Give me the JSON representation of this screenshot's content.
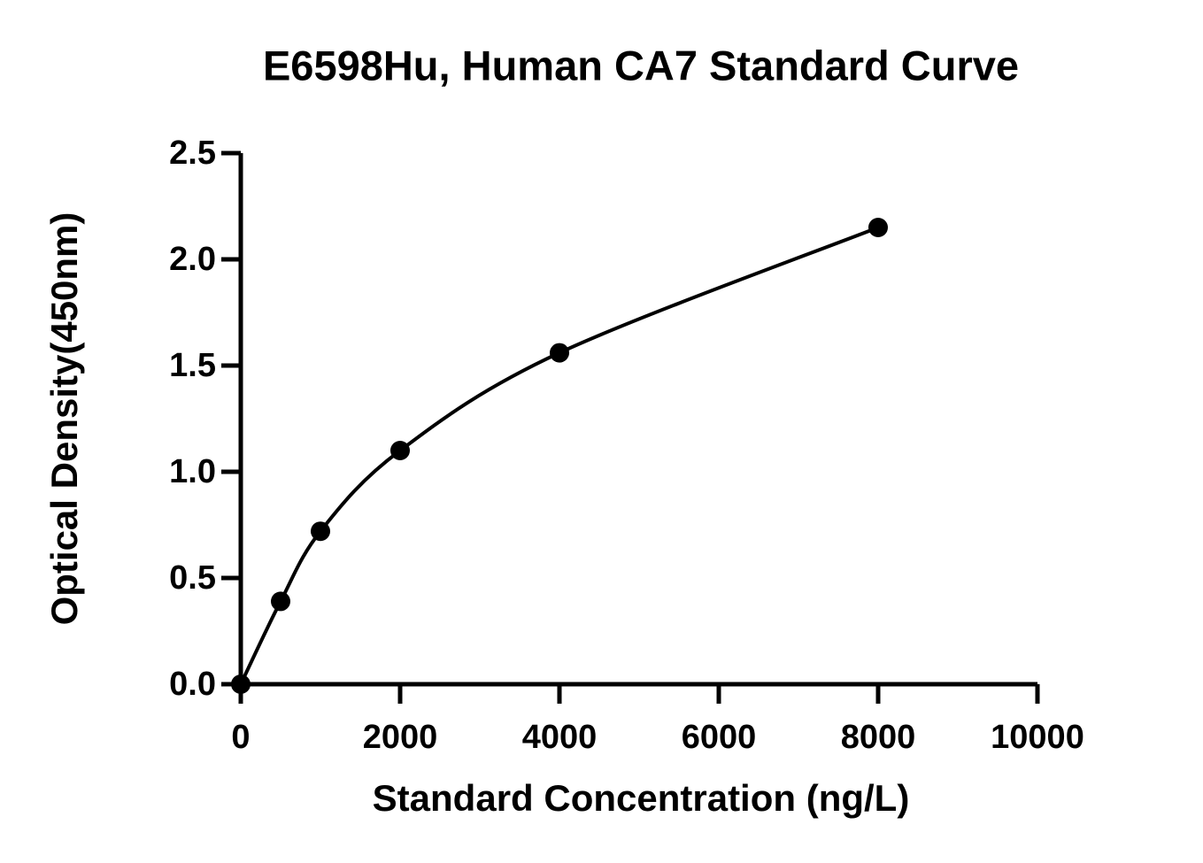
{
  "chart_data": {
    "type": "scatter",
    "title": "E6598Hu, Human CA7 Standard Curve",
    "x_label": "Standard Concentration (ng/L)",
    "y_label": "Optical Density(450nm)",
    "x": [
      0,
      500,
      1000,
      2000,
      4000,
      8000
    ],
    "values": [
      0.0,
      0.39,
      0.72,
      1.1,
      1.56,
      2.15
    ],
    "color": "#000000",
    "fit_curve": true,
    "xlim": [
      0,
      10000
    ],
    "xticks": [
      0,
      2000,
      4000,
      6000,
      8000,
      10000
    ],
    "ylim": [
      0,
      2.5
    ],
    "yticks": [
      {
        "value": 0,
        "label": "0.0"
      },
      0.5,
      {
        "value": 1,
        "label": "1.0"
      },
      1.5,
      {
        "value": 2,
        "label": "2.0"
      },
      2.5
    ]
  }
}
